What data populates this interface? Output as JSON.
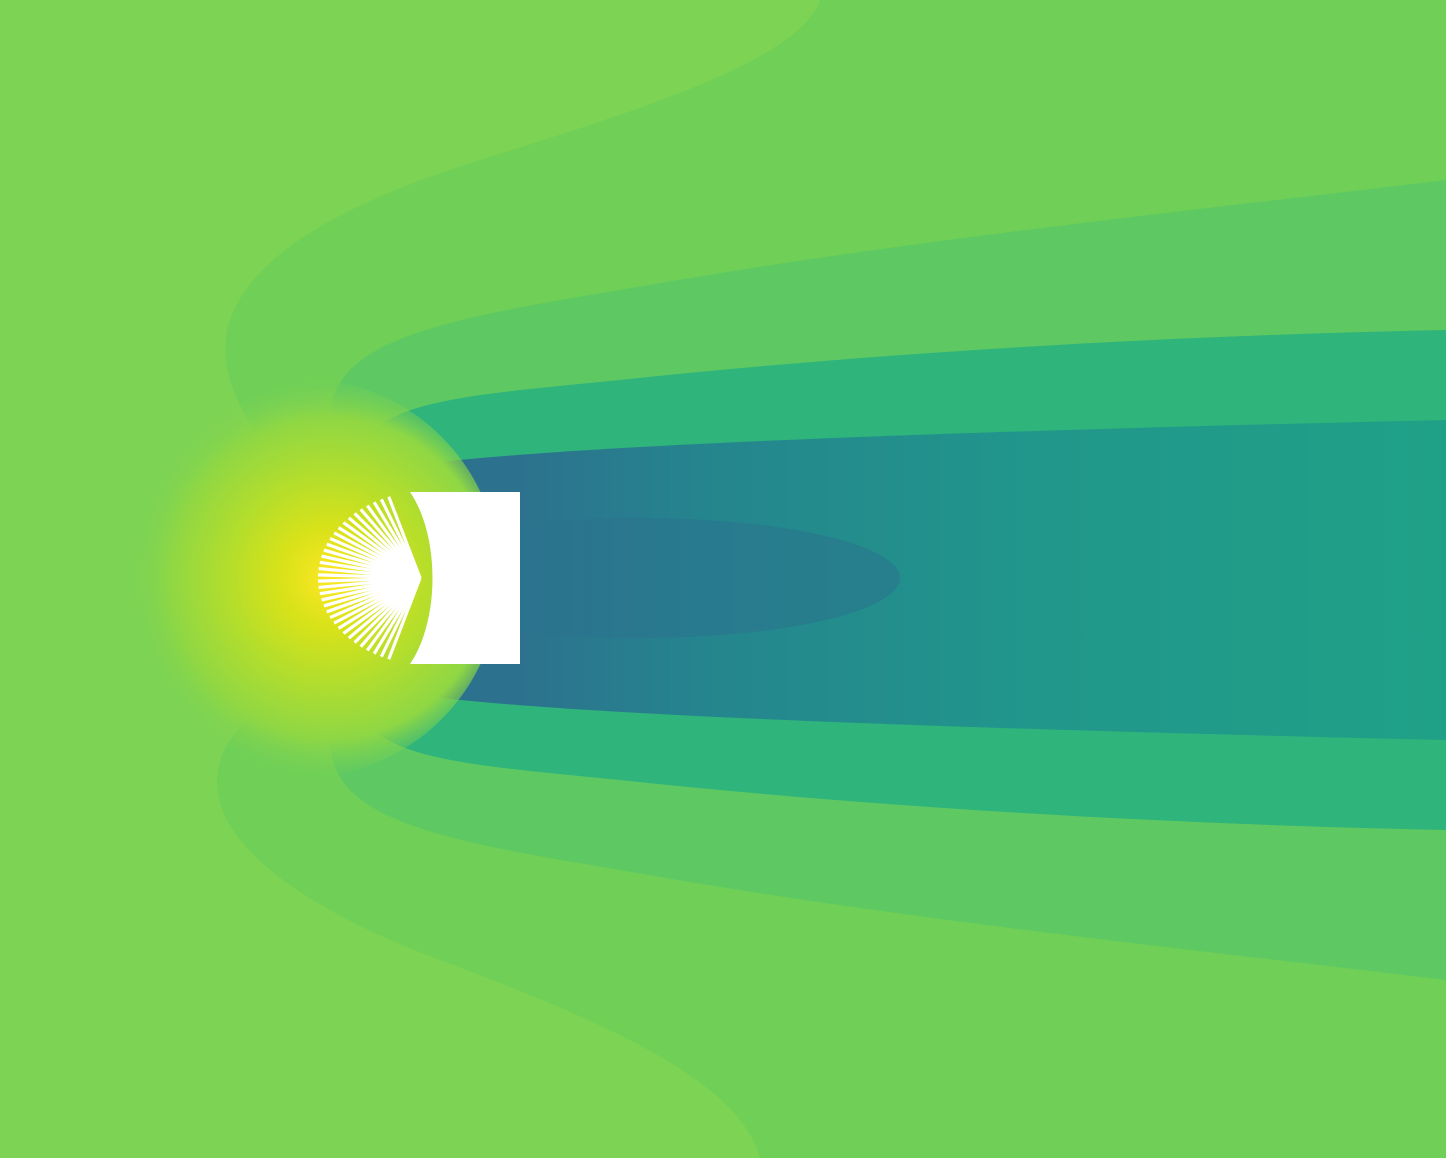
{
  "figure": {
    "kind": "contour-field",
    "colormap": "viridis",
    "palette": {
      "far_field": "#7dd353",
      "mid_field": "#5ec962",
      "wake_edge": "#2fb47c",
      "wake_mid": "#21a685",
      "wake_core": "#2c728e",
      "stagnation_outer": "#b5de2b",
      "stagnation_core": "#fde725",
      "obstacle": "#ffffff",
      "fan_lines": "#ffffff"
    },
    "fan_line_count": 34
  }
}
